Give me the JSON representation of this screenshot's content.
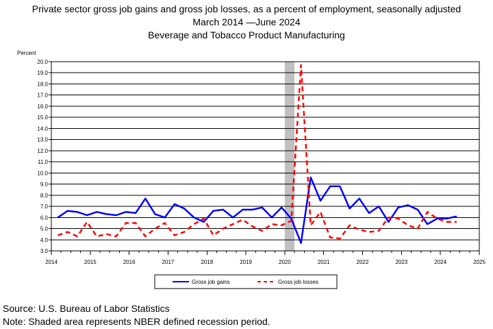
{
  "title": "Private sector gross job gains and gross job losses, as a percent of employment, seasonally adjusted",
  "subtitle_dates": "March 2014 —June 2024",
  "industry": "Beverage and Tobacco Product Manufacturing",
  "source": "Source: U.S. Bureau of Labor Statistics",
  "note": "Note: Shaded area represents NBER defined recession period.",
  "colors": {
    "gains": "#0000ff",
    "losses": "#ff0000",
    "recession": "#c0c0c0",
    "grid": "#000000"
  },
  "chart_data": {
    "type": "line",
    "ylabel": "Percent",
    "ylim": [
      3.0,
      20.0
    ],
    "yticks": [
      "3.0",
      "4.0",
      "5.0",
      "6.0",
      "7.0",
      "8.0",
      "9.0",
      "10.0",
      "11.0",
      "12.0",
      "13.0",
      "14.0",
      "15.0",
      "16.0",
      "17.0",
      "18.0",
      "19.0",
      "20.0"
    ],
    "xlim": [
      2014,
      2025
    ],
    "xticks": [
      "2014",
      "2015",
      "2016",
      "2017",
      "2018",
      "2019",
      "2020",
      "2021",
      "2022",
      "2023",
      "2024",
      "2025"
    ],
    "grid": true,
    "legend_position": "bottom",
    "recession_shading": {
      "start": 2020.0,
      "end": 2020.25
    },
    "x": [
      "2014-03",
      "2014-06",
      "2014-09",
      "2014-12",
      "2015-03",
      "2015-06",
      "2015-09",
      "2015-12",
      "2016-03",
      "2016-06",
      "2016-09",
      "2016-12",
      "2017-03",
      "2017-06",
      "2017-09",
      "2017-12",
      "2018-03",
      "2018-06",
      "2018-09",
      "2018-12",
      "2019-03",
      "2019-06",
      "2019-09",
      "2019-12",
      "2020-03",
      "2020-06",
      "2020-09",
      "2020-12",
      "2021-03",
      "2021-06",
      "2021-09",
      "2021-12",
      "2022-03",
      "2022-06",
      "2022-09",
      "2022-12",
      "2023-03",
      "2023-06",
      "2023-09",
      "2023-12",
      "2024-03",
      "2024-06"
    ],
    "series": [
      {
        "name": "Gross job gains",
        "style": "solid",
        "values": [
          6.0,
          6.6,
          6.5,
          6.2,
          6.5,
          6.3,
          6.2,
          6.5,
          6.4,
          7.7,
          6.3,
          6.0,
          7.2,
          6.8,
          6.0,
          5.6,
          6.6,
          6.7,
          6.0,
          6.7,
          6.7,
          6.9,
          6.0,
          6.9,
          5.9,
          3.7,
          9.6,
          7.5,
          8.8,
          8.8,
          6.8,
          7.7,
          6.4,
          7.0,
          5.6,
          6.9,
          7.1,
          6.7,
          5.4,
          5.9,
          5.9,
          6.1
        ]
      },
      {
        "name": "Gross job losses",
        "style": "dashed",
        "values": [
          4.4,
          4.7,
          4.3,
          5.6,
          4.3,
          4.5,
          4.3,
          5.5,
          5.5,
          4.3,
          5.0,
          5.5,
          4.4,
          4.7,
          5.4,
          5.9,
          4.4,
          5.0,
          5.4,
          5.8,
          5.2,
          4.8,
          5.4,
          5.3,
          5.7,
          19.7,
          5.3,
          6.5,
          4.2,
          4.1,
          5.3,
          4.9,
          4.7,
          4.8,
          6.0,
          5.9,
          5.3,
          5.0,
          6.5,
          5.9,
          5.6,
          5.6
        ]
      }
    ]
  }
}
